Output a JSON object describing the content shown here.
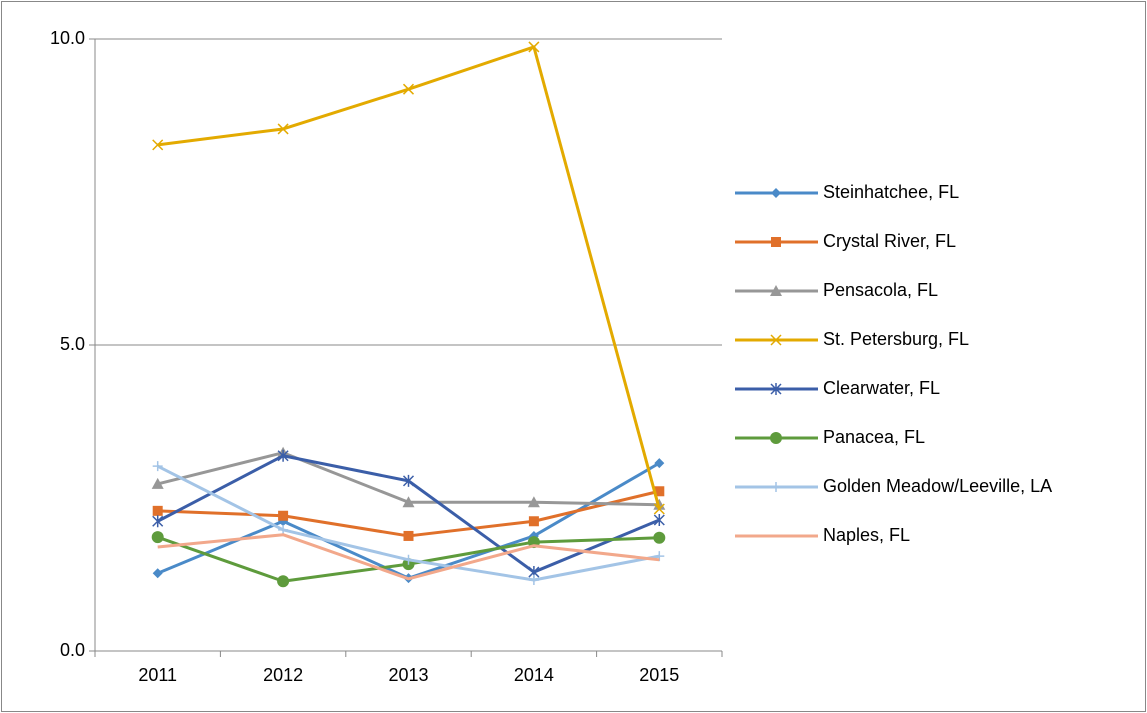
{
  "chart_data": {
    "type": "line",
    "categories": [
      "2011",
      "2012",
      "2013",
      "2014",
      "2015"
    ],
    "ylim": [
      0,
      10
    ],
    "yticks": [
      {
        "value": 0,
        "label": "0.0"
      },
      {
        "value": 5,
        "label": "5.0"
      },
      {
        "value": 10,
        "label": "10.0"
      }
    ],
    "grid": true,
    "legend": "right",
    "series": [
      {
        "name": "Steinhatchee, FL",
        "color": "#4a8ac8",
        "marker": "diamond",
        "values": [
          1.27,
          2.12,
          1.19,
          1.88,
          3.07
        ]
      },
      {
        "name": "Crystal River, FL",
        "color": "#e0702a",
        "marker": "square",
        "values": [
          2.29,
          2.21,
          1.88,
          2.12,
          2.61
        ]
      },
      {
        "name": "Pensacola, FL",
        "color": "#979797",
        "marker": "triangle",
        "values": [
          2.73,
          3.24,
          2.43,
          2.43,
          2.39
        ]
      },
      {
        "name": "St. Petersburg, FL",
        "color": "#e3aa00",
        "marker": "x",
        "values": [
          8.27,
          8.53,
          9.18,
          9.87,
          2.32
        ]
      },
      {
        "name": "Clearwater, FL",
        "color": "#3b5ea8",
        "marker": "star",
        "values": [
          2.12,
          3.19,
          2.78,
          1.29,
          2.14
        ]
      },
      {
        "name": "Panacea, FL",
        "color": "#5e9b3c",
        "marker": "circle",
        "values": [
          1.86,
          1.14,
          1.42,
          1.78,
          1.85
        ]
      },
      {
        "name": "Golden Meadow/Leeville, LA",
        "color": "#a3c4e6",
        "marker": "plus",
        "values": [
          3.02,
          1.98,
          1.49,
          1.16,
          1.55
        ]
      },
      {
        "name": "Naples, FL",
        "color": "#f2a88b",
        "marker": "none",
        "values": [
          1.7,
          1.9,
          1.18,
          1.72,
          1.49
        ]
      }
    ]
  }
}
